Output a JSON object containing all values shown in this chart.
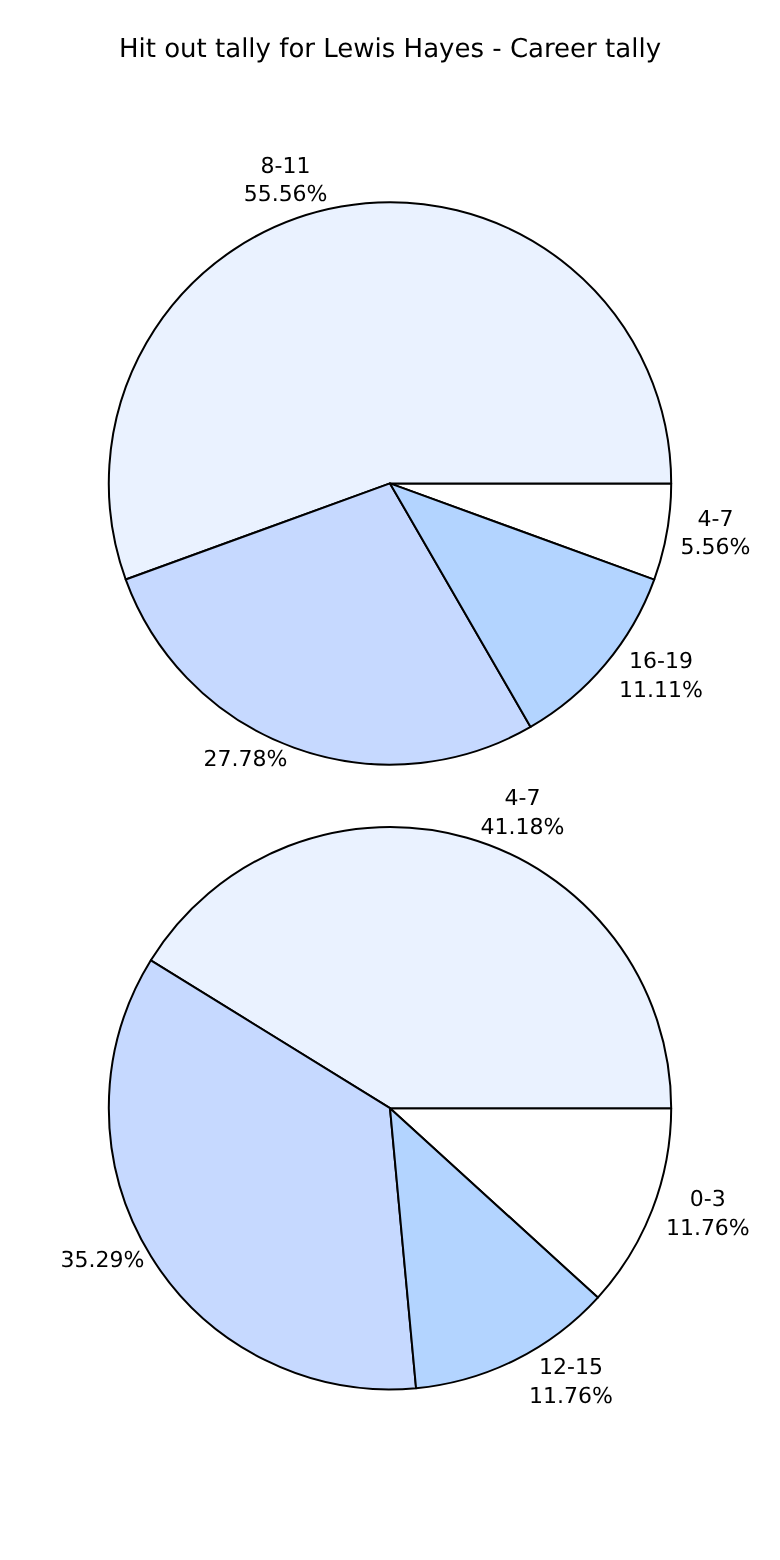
{
  "chart_data": [
    {
      "type": "pie",
      "title": "Hit out tally for Lewis Hayes - Career tally",
      "categories": [
        "4-7",
        "8-11",
        null,
        "16-19"
      ],
      "values": [
        5.56,
        55.56,
        27.78,
        11.11
      ],
      "value_labels": [
        "5.56%",
        "55.56%",
        "27.78%",
        "11.11%"
      ],
      "colors": [
        "#ffffff",
        "#eaf2ff",
        "#c6d9ff",
        "#b3d4ff"
      ]
    },
    {
      "type": "pie",
      "categories": [
        "0-3",
        "4-7",
        null,
        "12-15"
      ],
      "values": [
        11.76,
        41.18,
        35.29,
        11.76
      ],
      "value_labels": [
        "11.76%",
        "41.18%",
        "35.29%",
        "11.76%"
      ],
      "colors": [
        "#ffffff",
        "#eaf2ff",
        "#c6d9ff",
        "#b3d4ff"
      ]
    }
  ]
}
